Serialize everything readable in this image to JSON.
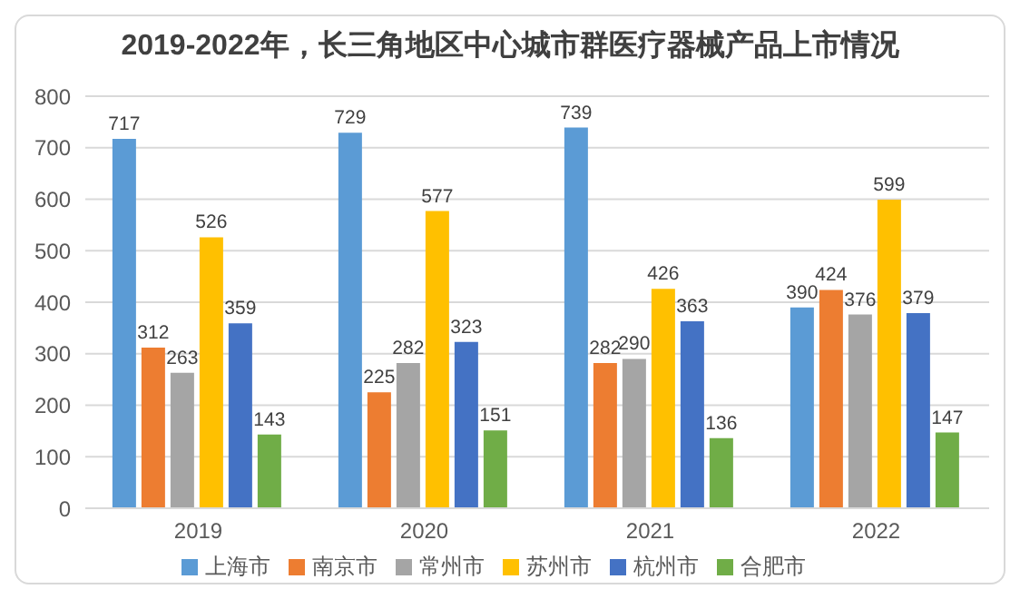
{
  "chart_data": {
    "type": "bar",
    "title": "2019-2022年，长三角地区中心城市群医疗器械产品上市情况",
    "categories": [
      "2019",
      "2020",
      "2021",
      "2022"
    ],
    "series": [
      {
        "name": "上海市",
        "color": "#5b9bd5",
        "values": [
          717,
          729,
          739,
          390
        ]
      },
      {
        "name": "南京市",
        "color": "#ed7d31",
        "values": [
          312,
          225,
          282,
          424
        ]
      },
      {
        "name": "常州市",
        "color": "#a5a5a5",
        "values": [
          263,
          282,
          290,
          376
        ]
      },
      {
        "name": "苏州市",
        "color": "#ffc000",
        "values": [
          526,
          577,
          426,
          599
        ]
      },
      {
        "name": "杭州市",
        "color": "#4472c4",
        "values": [
          359,
          323,
          363,
          379
        ]
      },
      {
        "name": "合肥市",
        "color": "#70ad47",
        "values": [
          143,
          151,
          136,
          147
        ]
      }
    ],
    "ylim": [
      0,
      800
    ],
    "yticks": [
      0,
      100,
      200,
      300,
      400,
      500,
      600,
      700,
      800
    ],
    "grid": "y",
    "legend": "bottom",
    "data_labels": true
  }
}
